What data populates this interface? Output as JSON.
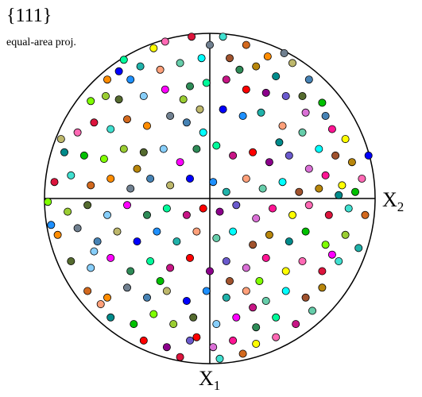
{
  "title": "{111}",
  "subtitle": "equal-area proj.",
  "axes": {
    "horizontal_label": "X",
    "horizontal_sub": "2",
    "vertical_label": "X",
    "vertical_sub": "1"
  },
  "palette": [
    "#ff0000",
    "#00c000",
    "#0000ff",
    "#ffff00",
    "#ff00ff",
    "#00ffff",
    "#ff8c00",
    "#8b008b",
    "#7fff00",
    "#1e90ff",
    "#ff69b4",
    "#2e8b57",
    "#a0522d",
    "#708090",
    "#6a5acd",
    "#9acd32",
    "#20b2aa",
    "#dc143c",
    "#00fa9a",
    "#b8860b",
    "#4682b4",
    "#da70d6",
    "#556b2f",
    "#ffa07a",
    "#40e0d0",
    "#c71585",
    "#008b8b",
    "#bdb76b",
    "#ff1493",
    "#87cefa",
    "#66cdaa",
    "#d2691e"
  ],
  "chart_data": {
    "type": "scatter",
    "projection": "equal-area",
    "plane_family": "{111}",
    "domain": [
      -1,
      1
    ],
    "points": [
      [
        -0.34,
        0.91
      ],
      [
        -0.27,
        0.95
      ],
      [
        -0.11,
        0.98
      ],
      [
        0.08,
        0.98
      ],
      [
        0.22,
        0.93
      ],
      [
        0.35,
        0.86
      ],
      [
        0.45,
        0.88
      ],
      [
        0.6,
        0.72
      ],
      [
        0.5,
        0.82
      ],
      [
        -0.55,
        0.77
      ],
      [
        -0.48,
        0.72
      ],
      [
        -0.42,
        0.8
      ],
      [
        -0.3,
        0.78
      ],
      [
        -0.18,
        0.82
      ],
      [
        -0.05,
        0.85
      ],
      [
        0.12,
        0.85
      ],
      [
        0.28,
        0.8
      ],
      [
        0.4,
        0.74
      ],
      [
        0.68,
        0.58
      ],
      [
        -0.72,
        0.59
      ],
      [
        -0.63,
        0.62
      ],
      [
        -0.55,
        0.6
      ],
      [
        -0.4,
        0.62
      ],
      [
        -0.27,
        0.66
      ],
      [
        -0.12,
        0.68
      ],
      [
        -0.02,
        0.7
      ],
      [
        0.1,
        0.72
      ],
      [
        0.22,
        0.66
      ],
      [
        0.34,
        0.64
      ],
      [
        0.46,
        0.62
      ],
      [
        0.58,
        0.52
      ],
      [
        0.74,
        0.42
      ],
      [
        0.82,
        0.36
      ],
      [
        -0.8,
        0.4
      ],
      [
        -0.7,
        0.46
      ],
      [
        -0.6,
        0.42
      ],
      [
        -0.5,
        0.48
      ],
      [
        -0.38,
        0.44
      ],
      [
        -0.24,
        0.5
      ],
      [
        -0.14,
        0.46
      ],
      [
        -0.06,
        0.54
      ],
      [
        0.08,
        0.54
      ],
      [
        0.2,
        0.5
      ],
      [
        0.31,
        0.52
      ],
      [
        0.44,
        0.44
      ],
      [
        0.56,
        0.4
      ],
      [
        0.66,
        0.3
      ],
      [
        0.76,
        0.26
      ],
      [
        0.86,
        0.22
      ],
      [
        -0.88,
        0.28
      ],
      [
        -0.76,
        0.26
      ],
      [
        -0.64,
        0.24
      ],
      [
        -0.52,
        0.3
      ],
      [
        -0.4,
        0.28
      ],
      [
        -0.28,
        0.3
      ],
      [
        -0.18,
        0.22
      ],
      [
        -0.08,
        0.3
      ],
      [
        0.04,
        0.32
      ],
      [
        0.14,
        0.26
      ],
      [
        0.26,
        0.28
      ],
      [
        0.36,
        0.22
      ],
      [
        0.48,
        0.26
      ],
      [
        0.6,
        0.18
      ],
      [
        0.7,
        0.14
      ],
      [
        0.8,
        0.08
      ],
      [
        0.92,
        0.12
      ],
      [
        -0.94,
        0.1
      ],
      [
        -0.84,
        0.14
      ],
      [
        -0.72,
        0.08
      ],
      [
        -0.6,
        0.12
      ],
      [
        -0.48,
        0.06
      ],
      [
        -0.36,
        0.12
      ],
      [
        -0.24,
        0.08
      ],
      [
        -0.12,
        0.12
      ],
      [
        0.02,
        0.1
      ],
      [
        0.1,
        0.04
      ],
      [
        0.22,
        0.12
      ],
      [
        0.32,
        0.06
      ],
      [
        0.44,
        0.1
      ],
      [
        0.54,
        0.04
      ],
      [
        0.66,
        0.06
      ],
      [
        0.78,
        0.02
      ],
      [
        0.88,
        0.04
      ],
      [
        -0.98,
        -0.02
      ],
      [
        -0.86,
        -0.08
      ],
      [
        -0.74,
        -0.04
      ],
      [
        -0.62,
        -0.1
      ],
      [
        -0.5,
        -0.04
      ],
      [
        -0.38,
        -0.1
      ],
      [
        -0.26,
        -0.06
      ],
      [
        -0.14,
        -0.1
      ],
      [
        -0.04,
        -0.06
      ],
      [
        0.06,
        -0.08
      ],
      [
        0.16,
        -0.04
      ],
      [
        0.28,
        -0.12
      ],
      [
        0.38,
        -0.06
      ],
      [
        0.5,
        -0.1
      ],
      [
        0.6,
        -0.04
      ],
      [
        0.72,
        -0.1
      ],
      [
        0.84,
        -0.06
      ],
      [
        0.94,
        -0.1
      ],
      [
        -0.92,
        -0.22
      ],
      [
        -0.8,
        -0.18
      ],
      [
        -0.68,
        -0.26
      ],
      [
        -0.56,
        -0.2
      ],
      [
        -0.44,
        -0.26
      ],
      [
        -0.32,
        -0.2
      ],
      [
        -0.2,
        -0.26
      ],
      [
        -0.08,
        -0.2
      ],
      [
        0.04,
        -0.24
      ],
      [
        0.14,
        -0.2
      ],
      [
        0.26,
        -0.28
      ],
      [
        0.36,
        -0.22
      ],
      [
        0.48,
        -0.26
      ],
      [
        0.58,
        -0.2
      ],
      [
        0.7,
        -0.28
      ],
      [
        0.82,
        -0.22
      ],
      [
        -0.84,
        -0.38
      ],
      [
        -0.72,
        -0.42
      ],
      [
        -0.6,
        -0.36
      ],
      [
        -0.48,
        -0.44
      ],
      [
        -0.36,
        -0.38
      ],
      [
        -0.24,
        -0.42
      ],
      [
        -0.12,
        -0.36
      ],
      [
        0.0,
        -0.44
      ],
      [
        0.1,
        -0.38
      ],
      [
        0.22,
        -0.42
      ],
      [
        0.34,
        -0.36
      ],
      [
        0.46,
        -0.44
      ],
      [
        0.56,
        -0.38
      ],
      [
        0.68,
        -0.44
      ],
      [
        0.78,
        -0.38
      ],
      [
        -0.74,
        -0.56
      ],
      [
        -0.62,
        -0.6
      ],
      [
        -0.5,
        -0.54
      ],
      [
        -0.38,
        -0.6
      ],
      [
        -0.26,
        -0.56
      ],
      [
        -0.14,
        -0.62
      ],
      [
        -0.02,
        -0.56
      ],
      [
        0.1,
        -0.6
      ],
      [
        0.22,
        -0.56
      ],
      [
        0.34,
        -0.62
      ],
      [
        0.46,
        -0.56
      ],
      [
        0.58,
        -0.6
      ],
      [
        0.68,
        -0.54
      ],
      [
        -0.6,
        -0.72
      ],
      [
        -0.46,
        -0.76
      ],
      [
        -0.34,
        -0.7
      ],
      [
        -0.22,
        -0.76
      ],
      [
        -0.1,
        -0.72
      ],
      [
        0.04,
        -0.76
      ],
      [
        0.16,
        -0.72
      ],
      [
        0.28,
        -0.78
      ],
      [
        0.4,
        -0.72
      ],
      [
        0.52,
        -0.76
      ],
      [
        -0.4,
        -0.86
      ],
      [
        -0.26,
        -0.9
      ],
      [
        -0.12,
        -0.86
      ],
      [
        0.02,
        -0.9
      ],
      [
        0.14,
        -0.86
      ],
      [
        0.28,
        -0.88
      ],
      [
        0.4,
        -0.84
      ],
      [
        -0.18,
        -0.96
      ],
      [
        0.06,
        -0.97
      ],
      [
        0.2,
        -0.94
      ],
      [
        -0.62,
        0.72
      ],
      [
        0.0,
        0.93
      ],
      [
        0.7,
        0.5
      ],
      [
        -0.9,
        0.36
      ],
      [
        0.96,
        0.26
      ],
      [
        -0.96,
        -0.16
      ],
      [
        0.9,
        -0.3
      ],
      [
        -0.66,
        -0.64
      ],
      [
        0.62,
        -0.68
      ],
      [
        -0.04,
        0.4
      ],
      [
        0.12,
        -0.5
      ],
      [
        -0.44,
        0.18
      ],
      [
        0.42,
        0.34
      ],
      [
        -0.3,
        -0.5
      ],
      [
        0.3,
        -0.5
      ],
      [
        -0.16,
        0.6
      ],
      [
        0.56,
        0.62
      ],
      [
        -0.7,
        -0.32
      ],
      [
        0.74,
        -0.34
      ],
      [
        0.18,
        0.78
      ],
      [
        -0.52,
        0.84
      ],
      [
        0.26,
        -0.66
      ],
      [
        -0.08,
        -0.84
      ]
    ]
  }
}
